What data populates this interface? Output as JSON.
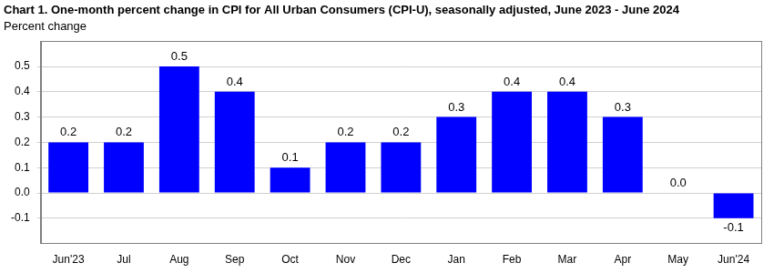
{
  "chart_data": {
    "type": "bar",
    "title": "Chart 1. One-month percent change in CPI for All Urban Consumers (CPI-U), seasonally adjusted, June 2023 - June 2024",
    "ylabel": "Percent change",
    "categories": [
      "Jun'23",
      "Jul",
      "Aug",
      "Sep",
      "Oct",
      "Nov",
      "Dec",
      "Jan",
      "Feb",
      "Mar",
      "Apr",
      "May",
      "Jun'24"
    ],
    "values": [
      0.2,
      0.2,
      0.5,
      0.4,
      0.1,
      0.2,
      0.2,
      0.3,
      0.4,
      0.4,
      0.3,
      0.0,
      -0.1
    ],
    "value_labels": [
      "0.2",
      "0.2",
      "0.5",
      "0.4",
      "0.1",
      "0.2",
      "0.2",
      "0.3",
      "0.4",
      "0.4",
      "0.3",
      "0.0",
      "-0.1"
    ],
    "color": "#0000ff",
    "ylim": [
      -0.2,
      0.6
    ],
    "yticks": [
      -0.1,
      {
        "value": 0,
        "label": "0.0"
      },
      0.1,
      0.2,
      0.3,
      0.4,
      0.5
    ],
    "grid": true,
    "data_labels": true
  }
}
